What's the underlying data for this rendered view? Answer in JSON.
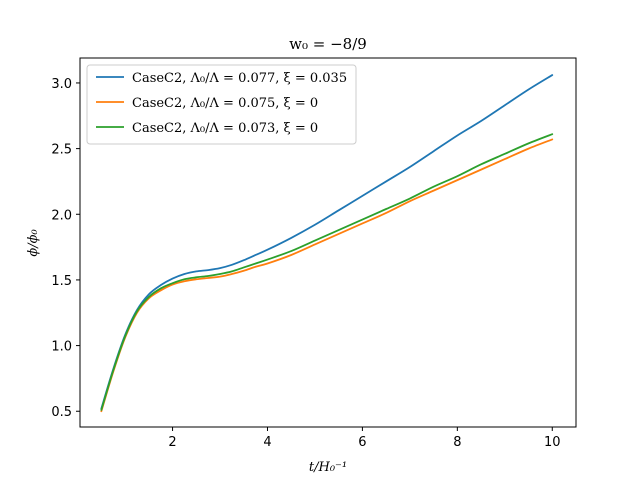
{
  "chart_data": {
    "type": "line",
    "title": "w₀ = −8/9",
    "xlabel": "t/H₀⁻¹",
    "ylabel": "ϕ/ϕ₀",
    "xlim": [
      0.05,
      10.5
    ],
    "ylim": [
      0.38,
      3.19
    ],
    "xticks": [
      2,
      4,
      6,
      8,
      10
    ],
    "yticks": [
      0.5,
      1.0,
      1.5,
      2.0,
      2.5,
      3.0
    ],
    "xtick_labels": [
      "2",
      "4",
      "6",
      "8",
      "10"
    ],
    "ytick_labels": [
      "0.5",
      "1.0",
      "1.5",
      "2.0",
      "2.5",
      "3.0"
    ],
    "grid": false,
    "legend_position": "top-left",
    "x": [
      0.5,
      0.75,
      1.0,
      1.25,
      1.5,
      1.75,
      2.0,
      2.25,
      2.5,
      2.75,
      3.0,
      3.25,
      3.5,
      3.75,
      4.0,
      4.5,
      5.0,
      5.5,
      6.0,
      6.5,
      7.0,
      7.5,
      8.0,
      8.5,
      9.0,
      9.5,
      10.0
    ],
    "series": [
      {
        "name": "CaseC2, Λ₀/Λ = 0.077, ξ = 0.035",
        "color": "#1f77b4",
        "values": [
          0.52,
          0.82,
          1.08,
          1.27,
          1.39,
          1.46,
          1.51,
          1.545,
          1.565,
          1.575,
          1.59,
          1.615,
          1.65,
          1.69,
          1.73,
          1.82,
          1.92,
          2.03,
          2.14,
          2.25,
          2.36,
          2.48,
          2.6,
          2.71,
          2.83,
          2.95,
          3.06
        ]
      },
      {
        "name": "CaseC2, Λ₀/Λ = 0.075, ξ = 0",
        "color": "#ff7f0e",
        "values": [
          0.5,
          0.8,
          1.06,
          1.25,
          1.36,
          1.42,
          1.465,
          1.49,
          1.505,
          1.515,
          1.525,
          1.545,
          1.57,
          1.6,
          1.625,
          1.69,
          1.77,
          1.85,
          1.93,
          2.01,
          2.1,
          2.18,
          2.26,
          2.34,
          2.42,
          2.5,
          2.57
        ]
      },
      {
        "name": "CaseC2, Λ₀/Λ = 0.073, ξ = 0",
        "color": "#2ca02c",
        "values": [
          0.51,
          0.81,
          1.07,
          1.26,
          1.37,
          1.435,
          1.475,
          1.505,
          1.52,
          1.53,
          1.545,
          1.565,
          1.595,
          1.625,
          1.655,
          1.72,
          1.8,
          1.88,
          1.96,
          2.04,
          2.12,
          2.21,
          2.29,
          2.38,
          2.46,
          2.54,
          2.61
        ]
      }
    ]
  }
}
